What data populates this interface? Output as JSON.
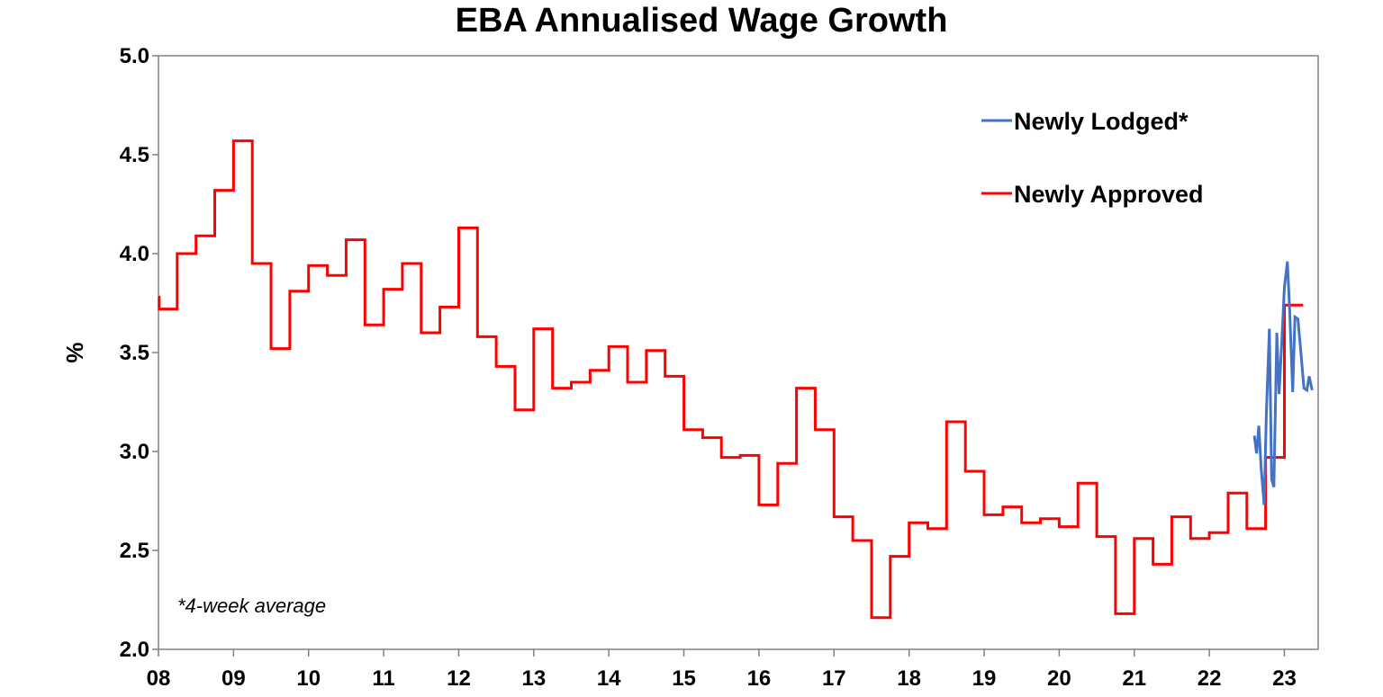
{
  "chart_data": {
    "type": "line",
    "title": "EBA Annualised Wage Growth",
    "xlabel": "",
    "ylabel": "%",
    "xlim": [
      2008.0,
      2023.45
    ],
    "ylim": [
      2.0,
      5.0
    ],
    "yticks": [
      "2.0",
      "2.5",
      "3.0",
      "3.5",
      "4.0",
      "4.5",
      "5.0"
    ],
    "xticks": [
      "08",
      "09",
      "10",
      "11",
      "12",
      "13",
      "14",
      "15",
      "16",
      "17",
      "18",
      "19",
      "20",
      "21",
      "22",
      "23"
    ],
    "grid": false,
    "legend_position": "top-right",
    "note": "*4-week average",
    "series": [
      {
        "name": "Newly Approved",
        "color": "#ff0000",
        "step": true,
        "points": [
          [
            2008.0,
            3.78
          ],
          [
            2008.01,
            3.72
          ],
          [
            2008.25,
            4.0
          ],
          [
            2008.5,
            4.09
          ],
          [
            2008.75,
            4.32
          ],
          [
            2009.0,
            4.57
          ],
          [
            2009.25,
            3.95
          ],
          [
            2009.5,
            3.52
          ],
          [
            2009.75,
            3.81
          ],
          [
            2010.0,
            3.94
          ],
          [
            2010.25,
            3.89
          ],
          [
            2010.5,
            4.07
          ],
          [
            2010.75,
            3.64
          ],
          [
            2011.0,
            3.82
          ],
          [
            2011.25,
            3.95
          ],
          [
            2011.5,
            3.6
          ],
          [
            2011.75,
            3.73
          ],
          [
            2012.0,
            4.13
          ],
          [
            2012.25,
            3.58
          ],
          [
            2012.5,
            3.43
          ],
          [
            2012.75,
            3.21
          ],
          [
            2013.0,
            3.62
          ],
          [
            2013.25,
            3.32
          ],
          [
            2013.5,
            3.35
          ],
          [
            2013.75,
            3.41
          ],
          [
            2014.0,
            3.53
          ],
          [
            2014.25,
            3.35
          ],
          [
            2014.5,
            3.51
          ],
          [
            2014.75,
            3.38
          ],
          [
            2015.0,
            3.11
          ],
          [
            2015.25,
            3.07
          ],
          [
            2015.5,
            2.97
          ],
          [
            2015.75,
            2.98
          ],
          [
            2016.0,
            2.73
          ],
          [
            2016.25,
            2.94
          ],
          [
            2016.5,
            3.32
          ],
          [
            2016.75,
            3.11
          ],
          [
            2017.0,
            2.67
          ],
          [
            2017.25,
            2.55
          ],
          [
            2017.5,
            2.16
          ],
          [
            2017.75,
            2.47
          ],
          [
            2018.0,
            2.64
          ],
          [
            2018.25,
            2.61
          ],
          [
            2018.5,
            3.15
          ],
          [
            2018.75,
            2.9
          ],
          [
            2019.0,
            2.68
          ],
          [
            2019.25,
            2.72
          ],
          [
            2019.5,
            2.64
          ],
          [
            2019.75,
            2.66
          ],
          [
            2020.0,
            2.62
          ],
          [
            2020.25,
            2.84
          ],
          [
            2020.5,
            2.57
          ],
          [
            2020.75,
            2.18
          ],
          [
            2021.0,
            2.56
          ],
          [
            2021.25,
            2.43
          ],
          [
            2021.5,
            2.67
          ],
          [
            2021.75,
            2.56
          ],
          [
            2022.0,
            2.59
          ],
          [
            2022.25,
            2.79
          ],
          [
            2022.5,
            2.61
          ],
          [
            2022.75,
            2.97
          ],
          [
            2023.0,
            3.74
          ],
          [
            2023.25,
            3.74
          ]
        ]
      },
      {
        "name": "Newly Lodged*",
        "color": "#4472c4",
        "step": false,
        "points": [
          [
            2022.6,
            3.08
          ],
          [
            2022.63,
            2.99
          ],
          [
            2022.66,
            3.13
          ],
          [
            2022.69,
            2.92
          ],
          [
            2022.73,
            2.73
          ],
          [
            2022.76,
            3.2
          ],
          [
            2022.8,
            3.62
          ],
          [
            2022.83,
            2.86
          ],
          [
            2022.86,
            2.82
          ],
          [
            2022.9,
            3.6
          ],
          [
            2022.93,
            3.29
          ],
          [
            2022.96,
            3.52
          ],
          [
            2023.0,
            3.83
          ],
          [
            2023.04,
            3.96
          ],
          [
            2023.07,
            3.72
          ],
          [
            2023.11,
            3.3
          ],
          [
            2023.14,
            3.68
          ],
          [
            2023.18,
            3.67
          ],
          [
            2023.22,
            3.5
          ],
          [
            2023.26,
            3.32
          ],
          [
            2023.3,
            3.31
          ],
          [
            2023.33,
            3.38
          ],
          [
            2023.37,
            3.31
          ]
        ]
      }
    ]
  }
}
